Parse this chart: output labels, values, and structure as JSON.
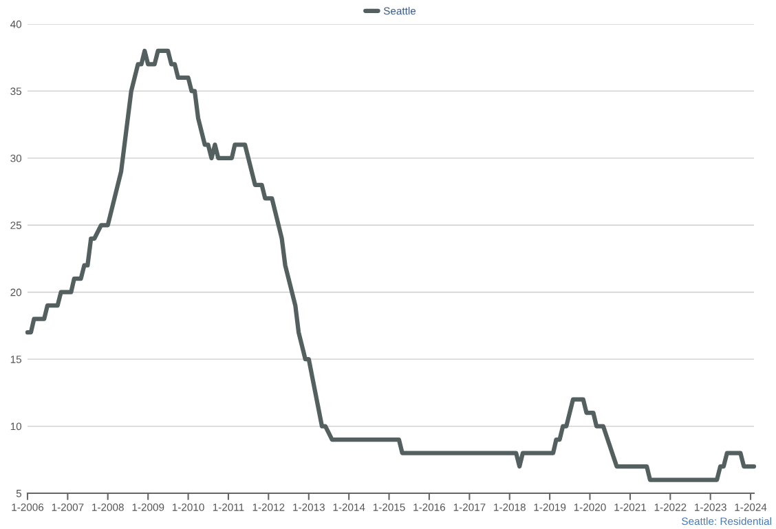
{
  "chart_data": {
    "type": "line",
    "x": [
      "2006-01",
      "2006-02",
      "2006-03",
      "2006-06",
      "2006-07",
      "2006-10",
      "2006-11",
      "2007-02",
      "2007-03",
      "2007-05",
      "2007-06",
      "2007-07",
      "2007-08",
      "2007-09",
      "2007-11",
      "2008-01",
      "2008-05",
      "2008-08",
      "2008-10",
      "2008-11",
      "2008-12",
      "2009-01",
      "2009-03",
      "2009-04",
      "2009-07",
      "2009-08",
      "2009-09",
      "2009-10",
      "2010-01",
      "2010-02",
      "2010-03",
      "2010-04",
      "2010-06",
      "2010-07",
      "2010-08",
      "2010-09",
      "2010-10",
      "2011-02",
      "2011-03",
      "2011-06",
      "2011-09",
      "2011-11",
      "2011-12",
      "2012-02",
      "2012-05",
      "2012-06",
      "2012-09",
      "2012-10",
      "2012-12",
      "2013-01",
      "2013-05",
      "2013-06",
      "2013-08",
      "2015-04",
      "2015-05",
      "2018-03",
      "2018-04",
      "2018-05",
      "2019-02",
      "2019-03",
      "2019-04",
      "2019-05",
      "2019-06",
      "2019-08",
      "2019-11",
      "2019-12",
      "2020-02",
      "2020-03",
      "2020-05",
      "2020-09",
      "2021-06",
      "2021-07",
      "2023-03",
      "2023-04",
      "2023-05",
      "2023-06",
      "2023-10",
      "2023-11",
      "2024-02"
    ],
    "series": [
      {
        "name": "Seattle",
        "color": "#54605f",
        "values": [
          17,
          17,
          18,
          18,
          19,
          19,
          20,
          20,
          21,
          21,
          22,
          22,
          24,
          24,
          25,
          25,
          29,
          35,
          37,
          37,
          38,
          37,
          37,
          38,
          38,
          37,
          37,
          36,
          36,
          35,
          35,
          33,
          31,
          31,
          30,
          31,
          30,
          30,
          31,
          31,
          28,
          28,
          27,
          27,
          24,
          22,
          19,
          17,
          15,
          15,
          10,
          10,
          9,
          9,
          8,
          8,
          7,
          8,
          8,
          9,
          9,
          10,
          10,
          12,
          12,
          11,
          11,
          10,
          10,
          7,
          7,
          6,
          6,
          7,
          7,
          8,
          8,
          7,
          7
        ]
      }
    ],
    "ylim": [
      5,
      40
    ],
    "yticks": [
      5,
      10,
      15,
      20,
      25,
      30,
      35,
      40
    ],
    "xlim": [
      "2006-01",
      "2024-02"
    ],
    "xticks": [
      {
        "value": "2006-01",
        "label": "1-2006"
      },
      {
        "value": "2007-01",
        "label": "1-2007"
      },
      {
        "value": "2008-01",
        "label": "1-2008"
      },
      {
        "value": "2009-01",
        "label": "1-2009"
      },
      {
        "value": "2010-01",
        "label": "1-2010"
      },
      {
        "value": "2011-01",
        "label": "1-2011"
      },
      {
        "value": "2012-01",
        "label": "1-2012"
      },
      {
        "value": "2013-01",
        "label": "1-2013"
      },
      {
        "value": "2014-01",
        "label": "1-2014"
      },
      {
        "value": "2015-01",
        "label": "1-2015"
      },
      {
        "value": "2016-01",
        "label": "1-2016"
      },
      {
        "value": "2017-01",
        "label": "1-2017"
      },
      {
        "value": "2018-01",
        "label": "1-2018"
      },
      {
        "value": "2019-01",
        "label": "1-2019"
      },
      {
        "value": "2020-01",
        "label": "1-2020"
      },
      {
        "value": "2021-01",
        "label": "1-2021"
      },
      {
        "value": "2022-01",
        "label": "1-2022"
      },
      {
        "value": "2023-01",
        "label": "1-2023"
      },
      {
        "value": "2024-01",
        "label": "1-2024"
      }
    ],
    "grid": "y",
    "legend": "top",
    "line_style": "solid",
    "marker": "none",
    "annotations": [
      "Seattle: Residential"
    ]
  }
}
